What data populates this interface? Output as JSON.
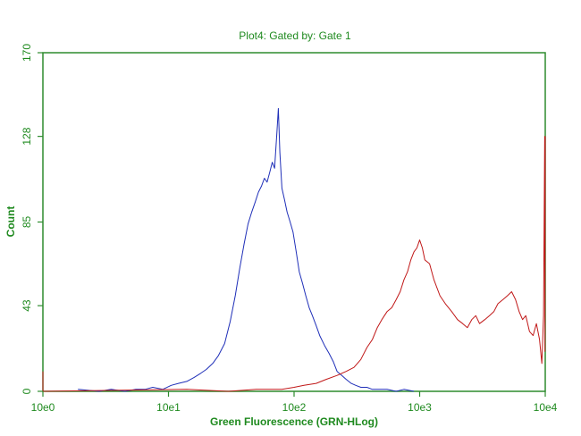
{
  "chart_data": {
    "type": "line",
    "title": "Plot4:  Gated by: Gate 1",
    "xlabel": "Green Fluorescence (GRN-HLog)",
    "ylabel": "Count",
    "x_scale": "log",
    "xlim": [
      1,
      10000
    ],
    "ylim": [
      0,
      170
    ],
    "x_ticks": [
      1,
      10,
      100,
      1000,
      10000
    ],
    "x_tick_labels": [
      "10e0",
      "10e1",
      "10e2",
      "10e3",
      "10e4"
    ],
    "y_ticks": [
      0,
      43,
      85,
      128,
      170
    ],
    "y_tick_labels": [
      "0",
      "43",
      "85",
      "128",
      "170"
    ],
    "grid": false,
    "legend": "none",
    "colors": {
      "text": "#1f8a1f",
      "axis": "#2e8b2e",
      "blue": "#1f2fb8",
      "red": "#c01818"
    },
    "series": [
      {
        "color": "#1f2fb8",
        "x": [
          1.9,
          2.8,
          3.5,
          4.5,
          5.5,
          6.5,
          7.5,
          9,
          10.5,
          12,
          14,
          16,
          18,
          20,
          22.5,
          25,
          28,
          31,
          34,
          37,
          40,
          43,
          46,
          49,
          52,
          55,
          58,
          61,
          64,
          67,
          70,
          73,
          75,
          77,
          80,
          84,
          88,
          93,
          98,
          104,
          110,
          117,
          124,
          132,
          140,
          150,
          160,
          175,
          190,
          205,
          220,
          240,
          260,
          285,
          310,
          340,
          380,
          420,
          480,
          550,
          650,
          750,
          900
        ],
        "y": [
          1,
          0,
          1,
          0,
          1,
          1,
          2,
          1,
          3,
          4,
          5,
          7,
          9,
          11,
          14,
          18,
          24,
          35,
          48,
          62,
          74,
          84,
          90,
          95,
          100,
          103,
          107,
          105,
          110,
          115,
          112,
          130,
          142,
          120,
          102,
          96,
          90,
          85,
          80,
          70,
          60,
          54,
          48,
          42,
          38,
          33,
          28,
          23,
          19,
          15,
          10,
          8,
          6,
          4,
          3,
          2,
          2,
          1,
          1,
          1,
          0,
          1,
          0
        ]
      },
      {
        "color": "#c01818",
        "x": [
          1,
          1,
          14,
          30,
          50,
          65,
          80,
          100,
          120,
          150,
          180,
          220,
          260,
          300,
          340,
          380,
          420,
          460,
          500,
          550,
          600,
          650,
          700,
          750,
          800,
          850,
          900,
          950,
          1000,
          1050,
          1100,
          1200,
          1300,
          1450,
          1600,
          1800,
          2000,
          2200,
          2400,
          2600,
          2800,
          3000,
          3300,
          3600,
          3900,
          4200,
          4600,
          5000,
          5400,
          5800,
          6200,
          6600,
          7000,
          7500,
          8000,
          8500,
          9000,
          9400,
          9700,
          9900,
          9950,
          10000
        ],
        "y": [
          10,
          0,
          1,
          0,
          1,
          1,
          1,
          2,
          3,
          4,
          6,
          8,
          10,
          12,
          16,
          22,
          26,
          32,
          36,
          40,
          42,
          46,
          50,
          56,
          60,
          66,
          70,
          72,
          76,
          72,
          66,
          64,
          56,
          48,
          44,
          40,
          36,
          34,
          32,
          36,
          38,
          34,
          36,
          38,
          40,
          44,
          46,
          48,
          50,
          46,
          40,
          36,
          38,
          30,
          28,
          34,
          26,
          14,
          38,
          128,
          20,
          128
        ]
      }
    ]
  }
}
